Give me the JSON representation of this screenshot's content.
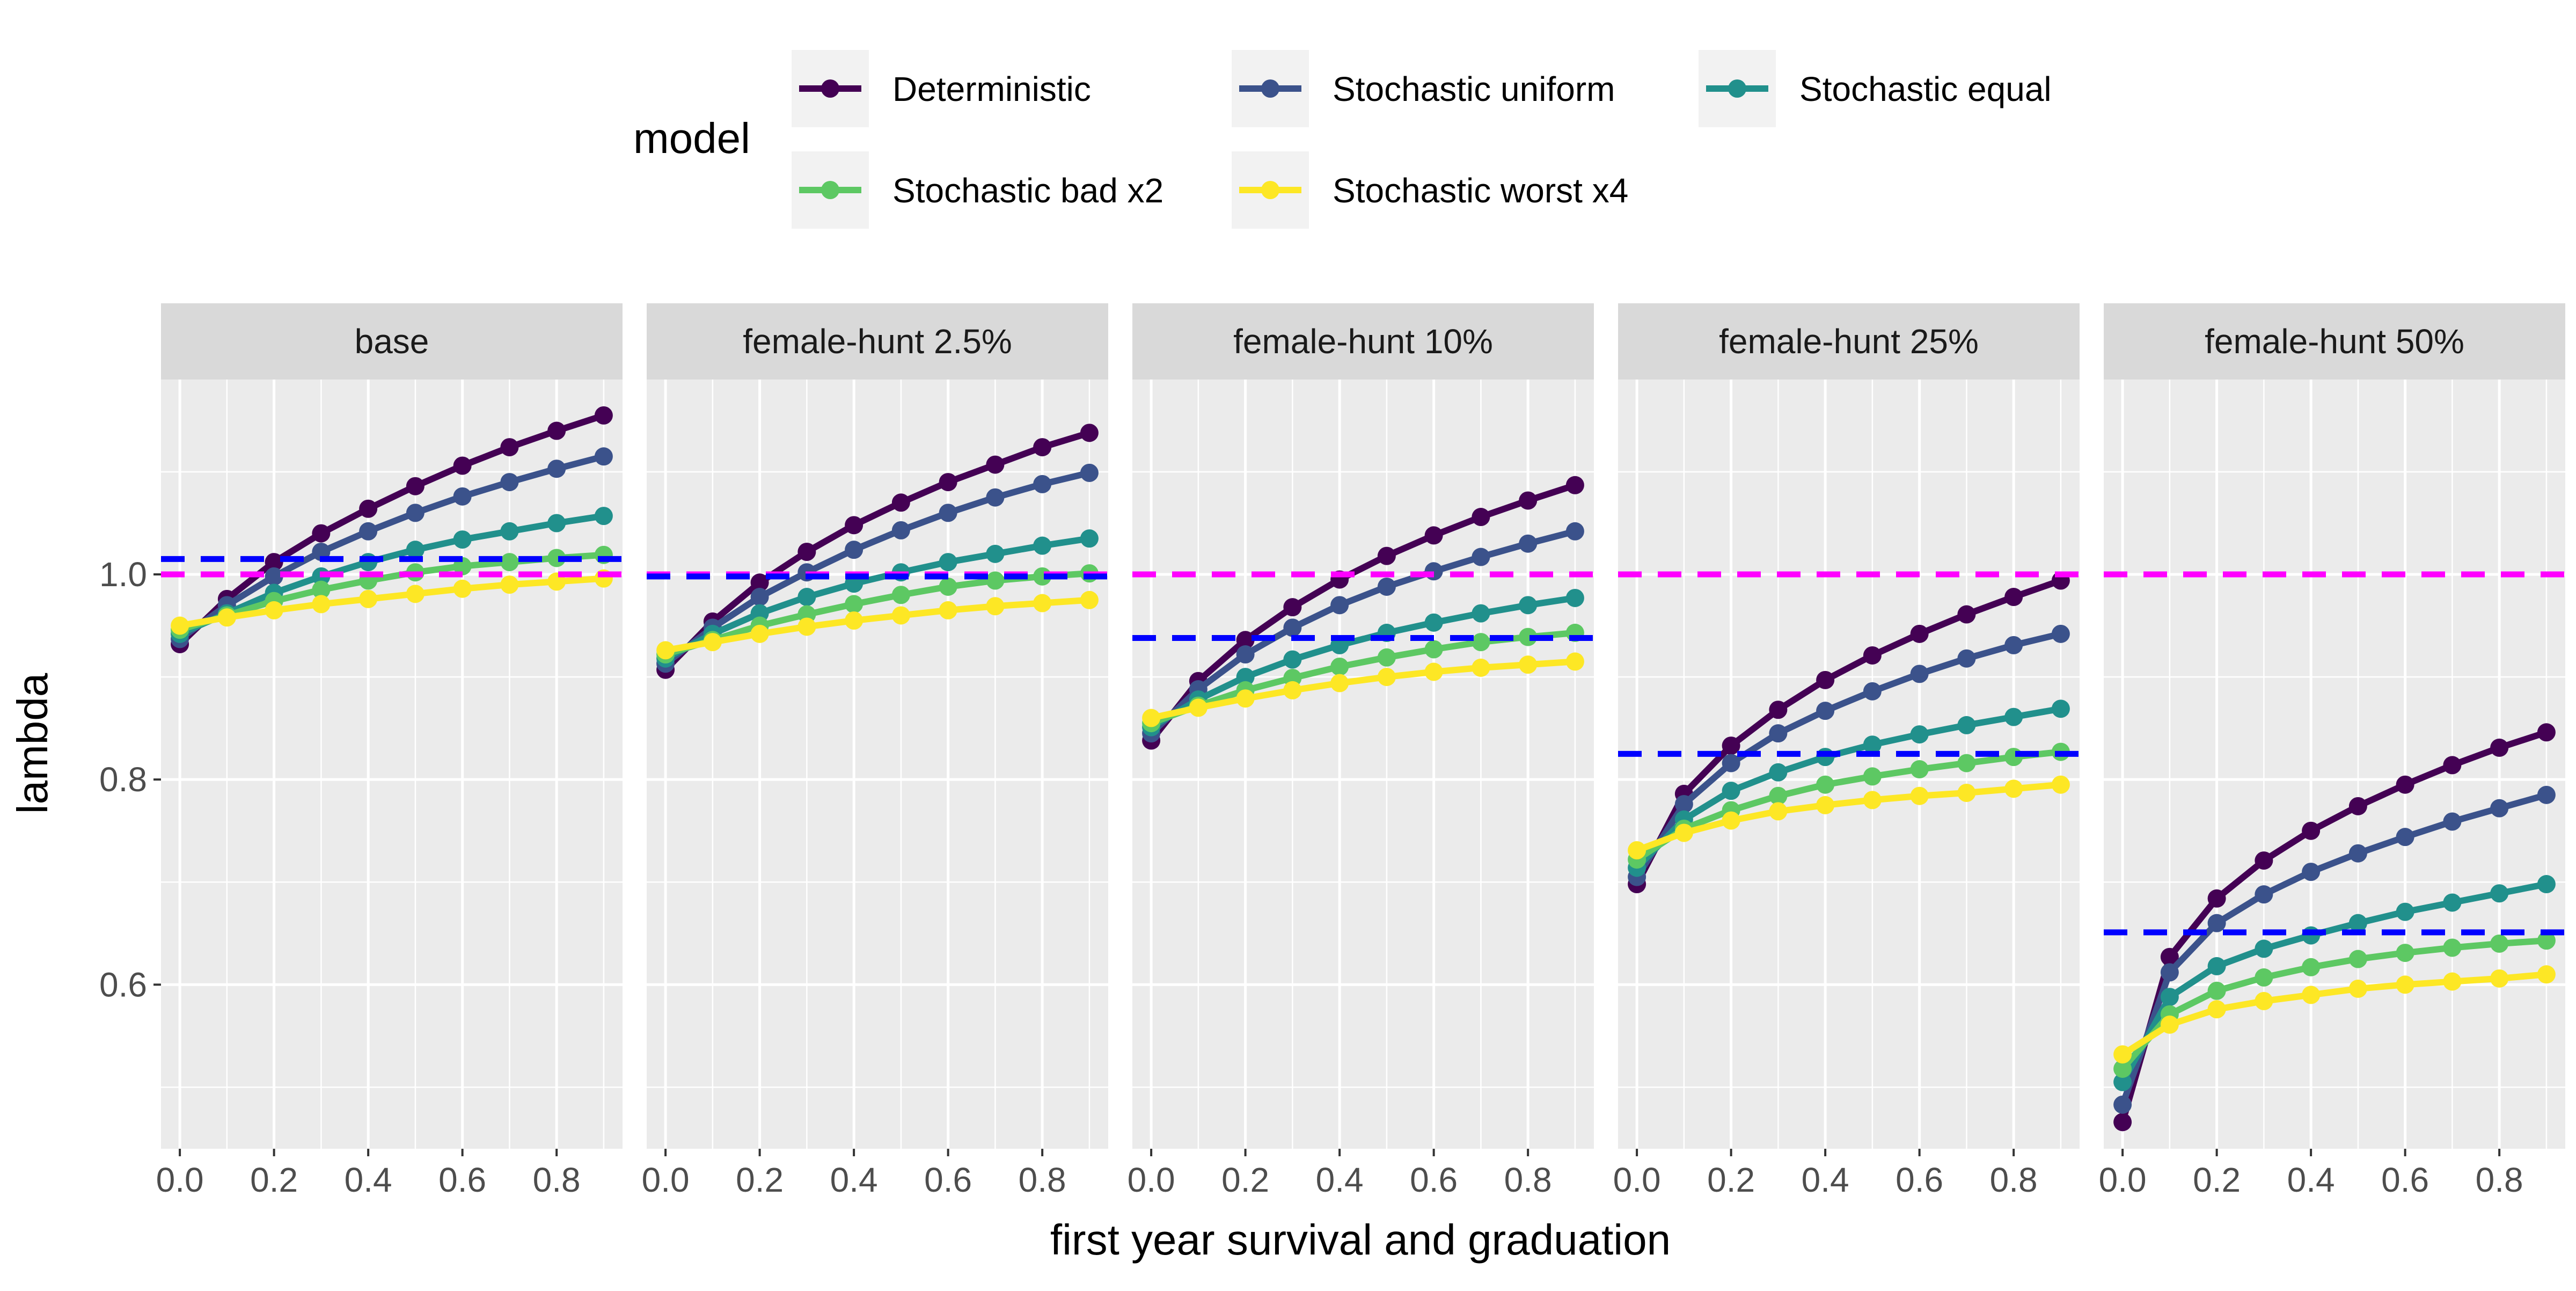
{
  "chart_data": {
    "type": "line",
    "xlabel": "first year survival and graduation",
    "ylabel": "lambda",
    "x": [
      0.0,
      0.1,
      0.2,
      0.3,
      0.4,
      0.5,
      0.6,
      0.7,
      0.8,
      0.9
    ],
    "x_ticks": [
      0.0,
      0.2,
      0.4,
      0.6,
      0.8
    ],
    "x_tick_labels": [
      "0.0",
      "0.2",
      "0.4",
      "0.6",
      "0.8"
    ],
    "xlim": [
      -0.04,
      0.94
    ],
    "y_ticks": [
      0.6,
      0.8,
      1.0
    ],
    "y_tick_labels": [
      "0.6",
      "0.8",
      "1.0"
    ],
    "ylim": [
      0.44,
      1.19
    ],
    "grid": true,
    "legend": {
      "title": "model",
      "placement": "top",
      "entries": [
        "Deterministic",
        "Stochastic uniform",
        "Stochastic equal",
        "Stochastic bad x2",
        "Stochastic worst x4"
      ]
    },
    "colors": {
      "Deterministic": "#440154",
      "Stochastic uniform": "#3b528b",
      "Stochastic equal": "#21908c",
      "Stochastic bad x2": "#5dc863",
      "Stochastic worst x4": "#fde725",
      "reference_magenta": "#ff00ff",
      "reference_blue": "#0000ff",
      "panel_background": "#ebebeb",
      "strip_background": "#d9d9d9"
    },
    "panels": [
      {
        "title": "base",
        "hline_magenta": 1.0,
        "hline_blue": 1.015,
        "series": [
          {
            "name": "Deterministic",
            "values": [
              0.932,
              0.976,
              1.012,
              1.04,
              1.064,
              1.086,
              1.106,
              1.124,
              1.14,
              1.155
            ]
          },
          {
            "name": "Stochastic uniform",
            "values": [
              0.937,
              0.97,
              0.998,
              1.022,
              1.042,
              1.06,
              1.076,
              1.09,
              1.103,
              1.115
            ]
          },
          {
            "name": "Stochastic equal",
            "values": [
              0.942,
              0.962,
              0.982,
              0.998,
              1.012,
              1.024,
              1.034,
              1.042,
              1.05,
              1.057
            ]
          },
          {
            "name": "Stochastic bad x2",
            "values": [
              0.946,
              0.96,
              0.974,
              0.985,
              0.994,
              1.002,
              1.008,
              1.012,
              1.016,
              1.019
            ]
          },
          {
            "name": "Stochastic worst x4",
            "values": [
              0.95,
              0.958,
              0.965,
              0.971,
              0.976,
              0.981,
              0.986,
              0.99,
              0.993,
              0.996
            ]
          }
        ]
      },
      {
        "title": "female-hunt 2.5%",
        "hline_magenta": 1.0,
        "hline_blue": 0.998,
        "series": [
          {
            "name": "Deterministic",
            "values": [
              0.907,
              0.954,
              0.992,
              1.022,
              1.048,
              1.07,
              1.09,
              1.107,
              1.124,
              1.138
            ]
          },
          {
            "name": "Stochastic uniform",
            "values": [
              0.913,
              0.948,
              0.978,
              1.002,
              1.024,
              1.043,
              1.06,
              1.075,
              1.088,
              1.099
            ]
          },
          {
            "name": "Stochastic equal",
            "values": [
              0.918,
              0.942,
              0.962,
              0.978,
              0.991,
              1.002,
              1.012,
              1.02,
              1.028,
              1.035
            ]
          },
          {
            "name": "Stochastic bad x2",
            "values": [
              0.922,
              0.936,
              0.95,
              0.961,
              0.971,
              0.98,
              0.988,
              0.994,
              0.998,
              1.001
            ]
          },
          {
            "name": "Stochastic worst x4",
            "values": [
              0.926,
              0.934,
              0.942,
              0.949,
              0.955,
              0.96,
              0.965,
              0.969,
              0.972,
              0.975
            ]
          }
        ]
      },
      {
        "title": "female-hunt 10%",
        "hline_magenta": 1.0,
        "hline_blue": 0.938,
        "series": [
          {
            "name": "Deterministic",
            "values": [
              0.838,
              0.896,
              0.936,
              0.968,
              0.995,
              1.018,
              1.038,
              1.056,
              1.072,
              1.087
            ]
          },
          {
            "name": "Stochastic uniform",
            "values": [
              0.845,
              0.888,
              0.922,
              0.948,
              0.97,
              0.988,
              1.003,
              1.017,
              1.03,
              1.042
            ]
          },
          {
            "name": "Stochastic equal",
            "values": [
              0.851,
              0.878,
              0.9,
              0.917,
              0.931,
              0.943,
              0.953,
              0.962,
              0.97,
              0.977
            ]
          },
          {
            "name": "Stochastic bad x2",
            "values": [
              0.855,
              0.872,
              0.887,
              0.899,
              0.91,
              0.919,
              0.927,
              0.934,
              0.939,
              0.943
            ]
          },
          {
            "name": "Stochastic worst x4",
            "values": [
              0.86,
              0.87,
              0.879,
              0.887,
              0.894,
              0.9,
              0.905,
              0.909,
              0.912,
              0.915
            ]
          }
        ]
      },
      {
        "title": "female-hunt 25%",
        "hline_magenta": 1.0,
        "hline_blue": 0.825,
        "series": [
          {
            "name": "Deterministic",
            "values": [
              0.698,
              0.786,
              0.833,
              0.868,
              0.897,
              0.921,
              0.942,
              0.961,
              0.978,
              0.994
            ]
          },
          {
            "name": "Stochastic uniform",
            "values": [
              0.705,
              0.776,
              0.816,
              0.845,
              0.867,
              0.886,
              0.903,
              0.918,
              0.931,
              0.942
            ]
          },
          {
            "name": "Stochastic equal",
            "values": [
              0.714,
              0.761,
              0.789,
              0.807,
              0.822,
              0.834,
              0.844,
              0.853,
              0.861,
              0.869
            ]
          },
          {
            "name": "Stochastic bad x2",
            "values": [
              0.722,
              0.752,
              0.77,
              0.784,
              0.795,
              0.803,
              0.81,
              0.816,
              0.822,
              0.827
            ]
          },
          {
            "name": "Stochastic worst x4",
            "values": [
              0.731,
              0.748,
              0.76,
              0.769,
              0.775,
              0.78,
              0.784,
              0.787,
              0.791,
              0.795
            ]
          }
        ]
      },
      {
        "title": "female-hunt 50%",
        "hline_magenta": 1.0,
        "hline_blue": 0.651,
        "series": [
          {
            "name": "Deterministic",
            "values": [
              0.466,
              0.627,
              0.684,
              0.721,
              0.75,
              0.774,
              0.795,
              0.814,
              0.831,
              0.846
            ]
          },
          {
            "name": "Stochastic uniform",
            "values": [
              0.483,
              0.612,
              0.66,
              0.688,
              0.71,
              0.728,
              0.744,
              0.759,
              0.772,
              0.785
            ]
          },
          {
            "name": "Stochastic equal",
            "values": [
              0.505,
              0.588,
              0.618,
              0.635,
              0.648,
              0.66,
              0.671,
              0.68,
              0.689,
              0.698
            ]
          },
          {
            "name": "Stochastic bad x2",
            "values": [
              0.518,
              0.571,
              0.594,
              0.607,
              0.617,
              0.625,
              0.631,
              0.636,
              0.64,
              0.643
            ]
          },
          {
            "name": "Stochastic worst x4",
            "values": [
              0.532,
              0.561,
              0.576,
              0.584,
              0.59,
              0.596,
              0.6,
              0.603,
              0.606,
              0.61
            ]
          }
        ]
      }
    ]
  }
}
